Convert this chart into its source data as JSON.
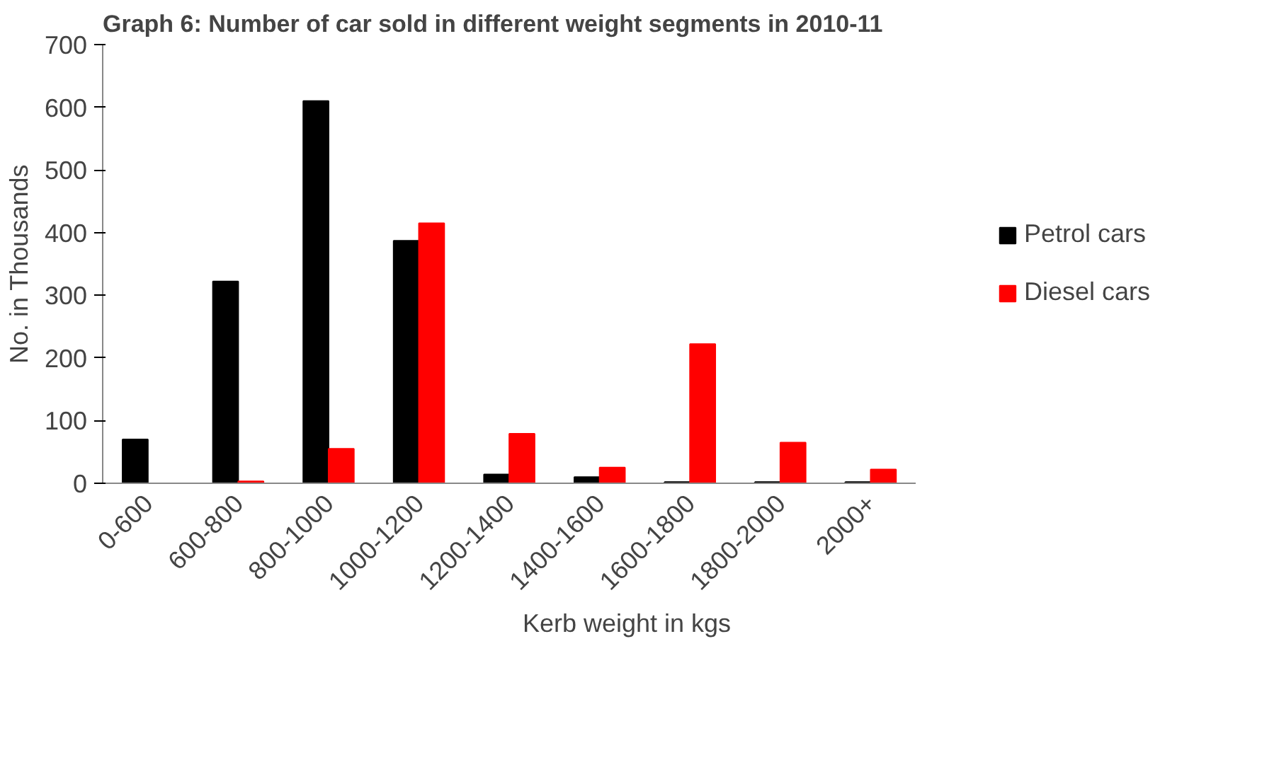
{
  "chart_data": {
    "type": "bar",
    "title": "Graph 6: Number of car sold in different weight segments in 2010-11",
    "xlabel": "Kerb weight in kgs",
    "ylabel": "No. in Thousands",
    "categories": [
      "0-600",
      "600-800",
      "800-1000",
      "1000-1200",
      "1200-1400",
      "1400-1600",
      "1600-1800",
      "1800-2000",
      "2000+"
    ],
    "series": [
      {
        "name": "Petrol cars",
        "color": "#000000",
        "values": [
          70,
          322,
          610,
          387,
          14,
          10,
          2,
          2,
          2
        ]
      },
      {
        "name": "Diesel cars",
        "color": "#ff0000",
        "values": [
          0,
          3,
          55,
          415,
          79,
          25,
          222,
          65,
          22
        ]
      }
    ],
    "ylim": [
      0,
      700
    ],
    "yticks": [
      0,
      100,
      200,
      300,
      400,
      500,
      600,
      700
    ],
    "grid": false,
    "legend": "right"
  }
}
